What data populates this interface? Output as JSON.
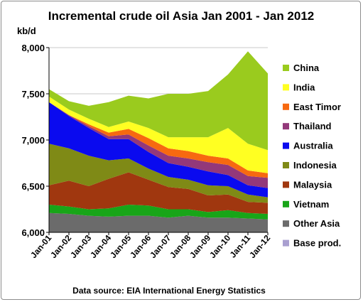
{
  "chart_data": {
    "type": "area",
    "title": "Incremental crude oil Asia  Jan 2001 - Jan 2012",
    "ylabel": "kb/d",
    "source": "Data source: EIA International Energy Statistics",
    "ylim": [
      6000,
      8000
    ],
    "yticks": [
      "6,000",
      "6,500",
      "7,000",
      "7,500",
      "8,000"
    ],
    "ytick_values": [
      6000,
      6500,
      7000,
      7500,
      8000
    ],
    "categories": [
      "Jan-01",
      "Jan-02",
      "Jan-03",
      "Jan-04",
      "Jan-05",
      "Jan-06",
      "Jan-07",
      "Jan-08",
      "Jan-09",
      "Jan-10",
      "Jan-11",
      "Jan-12"
    ],
    "grid": true,
    "legend_position": "right",
    "stacked_top_to_bottom_order": [
      "China",
      "India",
      "East Timor",
      "Thailand",
      "Australia",
      "Indonesia",
      "Malaysia",
      "Vietnam",
      "Other Asia",
      "Base prod."
    ],
    "series": [
      {
        "name": "Base prod.",
        "color": "#a99fd0",
        "values": [
          6000,
          6000,
          6000,
          6000,
          6000,
          6000,
          6000,
          6000,
          6000,
          6000,
          6000,
          6000
        ]
      },
      {
        "name": "Other Asia",
        "color": "#6b6b6b",
        "values": [
          210,
          200,
          180,
          170,
          180,
          180,
          160,
          180,
          160,
          160,
          150,
          140
        ]
      },
      {
        "name": "Vietnam",
        "color": "#18a518",
        "values": [
          90,
          80,
          70,
          90,
          120,
          110,
          90,
          70,
          60,
          80,
          60,
          60
        ]
      },
      {
        "name": "Malaysia",
        "color": "#a0370f",
        "values": [
          210,
          280,
          250,
          320,
          350,
          280,
          240,
          220,
          180,
          170,
          120,
          120
        ]
      },
      {
        "name": "Indonesia",
        "color": "#7f8a16",
        "values": [
          450,
          350,
          330,
          200,
          150,
          120,
          110,
          100,
          110,
          90,
          80,
          60
        ]
      },
      {
        "name": "Australia",
        "color": "#0a0aef",
        "values": [
          450,
          350,
          300,
          230,
          210,
          180,
          150,
          140,
          150,
          120,
          100,
          100
        ]
      },
      {
        "name": "Thailand",
        "color": "#93387a",
        "values": [
          0,
          10,
          20,
          30,
          50,
          70,
          80,
          90,
          100,
          110,
          100,
          110
        ]
      },
      {
        "name": "East Timor",
        "color": "#f76910",
        "values": [
          0,
          0,
          20,
          40,
          60,
          80,
          80,
          80,
          70,
          70,
          60,
          50
        ]
      },
      {
        "name": "India",
        "color": "#ffff22",
        "values": [
          60,
          60,
          60,
          60,
          80,
          110,
          120,
          150,
          200,
          330,
          290,
          250
        ]
      },
      {
        "name": "China",
        "color": "#9acb1e",
        "values": [
          80,
          90,
          140,
          270,
          280,
          320,
          470,
          470,
          500,
          580,
          1000,
          830
        ]
      }
    ]
  }
}
